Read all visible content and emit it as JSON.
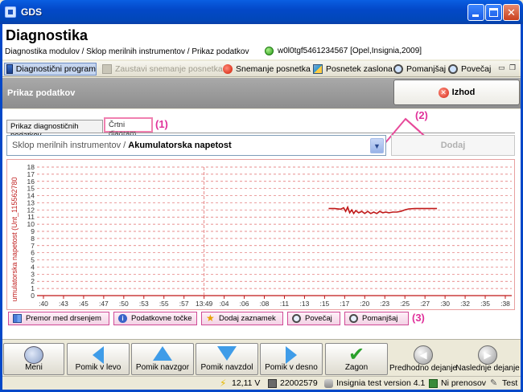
{
  "window": {
    "title": "GDS",
    "minimize_icon": "minimize-icon",
    "maximize_icon": "maximize-icon",
    "close_icon": "close-icon"
  },
  "header": {
    "title": "Diagnostika"
  },
  "infobar": {
    "breadcrumb": "Diagnostika modulov / Sklop merilnih instrumentov / Prikaz podatkov",
    "vehicle": "w0l0tgf5461234567 [Opel,Insignia,2009]"
  },
  "toolbar": {
    "diag_program": "Diagnostični program",
    "stop_recording": "Zaustavi snemanje posnetka",
    "recording": "Snemanje posnetka",
    "screenshot": "Posnetek zaslona",
    "zoom_out": "Pomanjšaj",
    "zoom_in": "Povečaj"
  },
  "panel": {
    "title": "Prikaz podatkov",
    "exit_label": "Izhod"
  },
  "tabs": [
    {
      "label": "Prikaz diagnostičnih podatkov"
    },
    {
      "label": "Črtni diagram"
    }
  ],
  "annotations": {
    "a1": "(1)",
    "a2": "(2)",
    "a3": "(3)"
  },
  "selector": {
    "path_prefix": "Sklop merilnih instrumentov / ",
    "path_item": "Akumulatorska napetost",
    "add_label": "Dodaj"
  },
  "chart_tools": {
    "scroll": "Premor med drsenjem",
    "data_points": "Podatkovne točke",
    "add_markers": "Dodaj zaznamek",
    "zoom_in": "Povečaj",
    "zoom_out": "Pomanjšaj"
  },
  "chart_data": {
    "type": "line",
    "ylabel": "umulatorska napetost (Unt_115562780",
    "ylim": [
      0,
      18
    ],
    "yticks": [
      0,
      1,
      2,
      3,
      4,
      5,
      6,
      7,
      8,
      9,
      10,
      11,
      12,
      13,
      14,
      15,
      16,
      17,
      18
    ],
    "xticks": [
      ":40",
      ":43",
      ":45",
      ":47",
      ":50",
      ":53",
      ":55",
      ":57",
      "13:49",
      ":04",
      ":06",
      ":08",
      ":11",
      ":13",
      ":15",
      ":17",
      ":20",
      ":23",
      ":25",
      ":27",
      ":30",
      ":32",
      ":35",
      ":38"
    ],
    "marker_xtick": "13:49",
    "grid": true,
    "line_color": "#c01818",
    "series": [
      {
        "name": "",
        "points": [
          [
            14.2,
            12.2
          ],
          [
            14.5,
            12.2
          ],
          [
            14.8,
            12.1
          ],
          [
            14.95,
            12.3
          ],
          [
            15.05,
            11.8
          ],
          [
            15.15,
            12.4
          ],
          [
            15.25,
            11.6
          ],
          [
            15.35,
            12.0
          ],
          [
            15.45,
            11.5
          ],
          [
            15.55,
            11.9
          ],
          [
            15.7,
            11.6
          ],
          [
            15.85,
            11.8
          ],
          [
            16.0,
            11.5
          ],
          [
            16.15,
            11.8
          ],
          [
            16.3,
            11.5
          ],
          [
            16.45,
            11.7
          ],
          [
            16.6,
            11.5
          ],
          [
            16.75,
            11.8
          ],
          [
            16.9,
            11.6
          ],
          [
            17.05,
            11.7
          ],
          [
            17.2,
            11.6
          ],
          [
            17.4,
            11.7
          ],
          [
            17.6,
            11.7
          ],
          [
            17.8,
            11.8
          ],
          [
            18.0,
            12.0
          ],
          [
            18.2,
            12.15
          ],
          [
            18.5,
            12.2
          ],
          [
            18.9,
            12.2
          ],
          [
            19.3,
            12.2
          ],
          [
            19.6,
            12.2
          ]
        ]
      }
    ]
  },
  "bottom_nav": {
    "menu": "Meni",
    "pan_left": "Pomik v levo",
    "pan_up": "Pomik navzgor",
    "pan_down": "Pomik navzdol",
    "pan_right": "Pomik v desno",
    "start": "Zagon",
    "prev_action": "Predhodno dejanje",
    "next_action": "Naslednje dejanje"
  },
  "status": {
    "voltage": "12,11 V",
    "device_id": "22002579",
    "version": "Insignia test version 4.1",
    "transfer": "Ni prenosov",
    "test": "Test"
  }
}
